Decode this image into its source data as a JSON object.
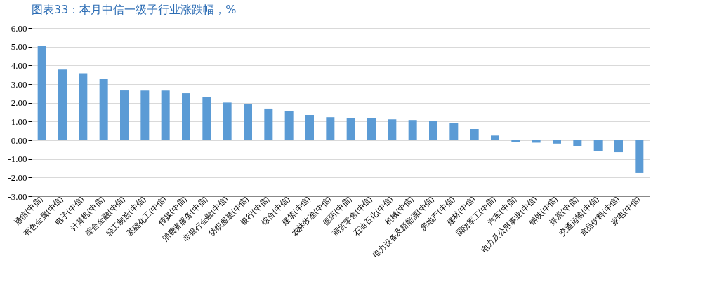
{
  "chart_data": {
    "type": "bar",
    "title": "图表33：本月中信一级子行业涨跌幅，%",
    "categories": [
      "通信(中信)",
      "有色金属(中信)",
      "电子(中信)",
      "计算机(中信)",
      "综合金融(中信)",
      "轻工制造(中信)",
      "基础化工(中信)",
      "传媒(中信)",
      "消费者服务(中信)",
      "非银行金融(中信)",
      "纺织服装(中信)",
      "银行(中信)",
      "综合(中信)",
      "建筑(中信)",
      "农林牧渔(中信)",
      "医药(中信)",
      "商贸零售(中信)",
      "石油石化(中信)",
      "机械(中信)",
      "电力设备及新能源(中信)",
      "房地产(中信)",
      "建材(中信)",
      "国防军工(中信)",
      "汽车(中信)",
      "电力及公用事业(中信)",
      "钢铁(中信)",
      "煤炭(中信)",
      "交通运输(中信)",
      "食品饮料(中信)",
      "家电(中信)"
    ],
    "values": [
      5.05,
      3.78,
      3.58,
      3.26,
      2.66,
      2.65,
      2.65,
      2.51,
      2.3,
      2.01,
      1.95,
      1.69,
      1.57,
      1.35,
      1.23,
      1.2,
      1.17,
      1.12,
      1.08,
      1.03,
      0.91,
      0.6,
      0.25,
      -0.09,
      -0.13,
      -0.18,
      -0.33,
      -0.58,
      -0.64,
      -1.76
    ],
    "color": "#5b9bd5",
    "ylim": [
      -3,
      6
    ],
    "yticks": [
      {
        "value": -3,
        "label": "-3.00"
      },
      {
        "value": -2,
        "label": "-2.00"
      },
      {
        "value": -1,
        "label": "-1.00"
      },
      {
        "value": 0,
        "label": "0.00"
      },
      {
        "value": 1,
        "label": "1.00"
      },
      {
        "value": 2,
        "label": "2.00"
      },
      {
        "value": 3,
        "label": "3.00"
      },
      {
        "value": 4,
        "label": "4.00"
      },
      {
        "value": 5,
        "label": "5.00"
      },
      {
        "value": 6,
        "label": "6.00"
      }
    ],
    "grid": "y"
  }
}
